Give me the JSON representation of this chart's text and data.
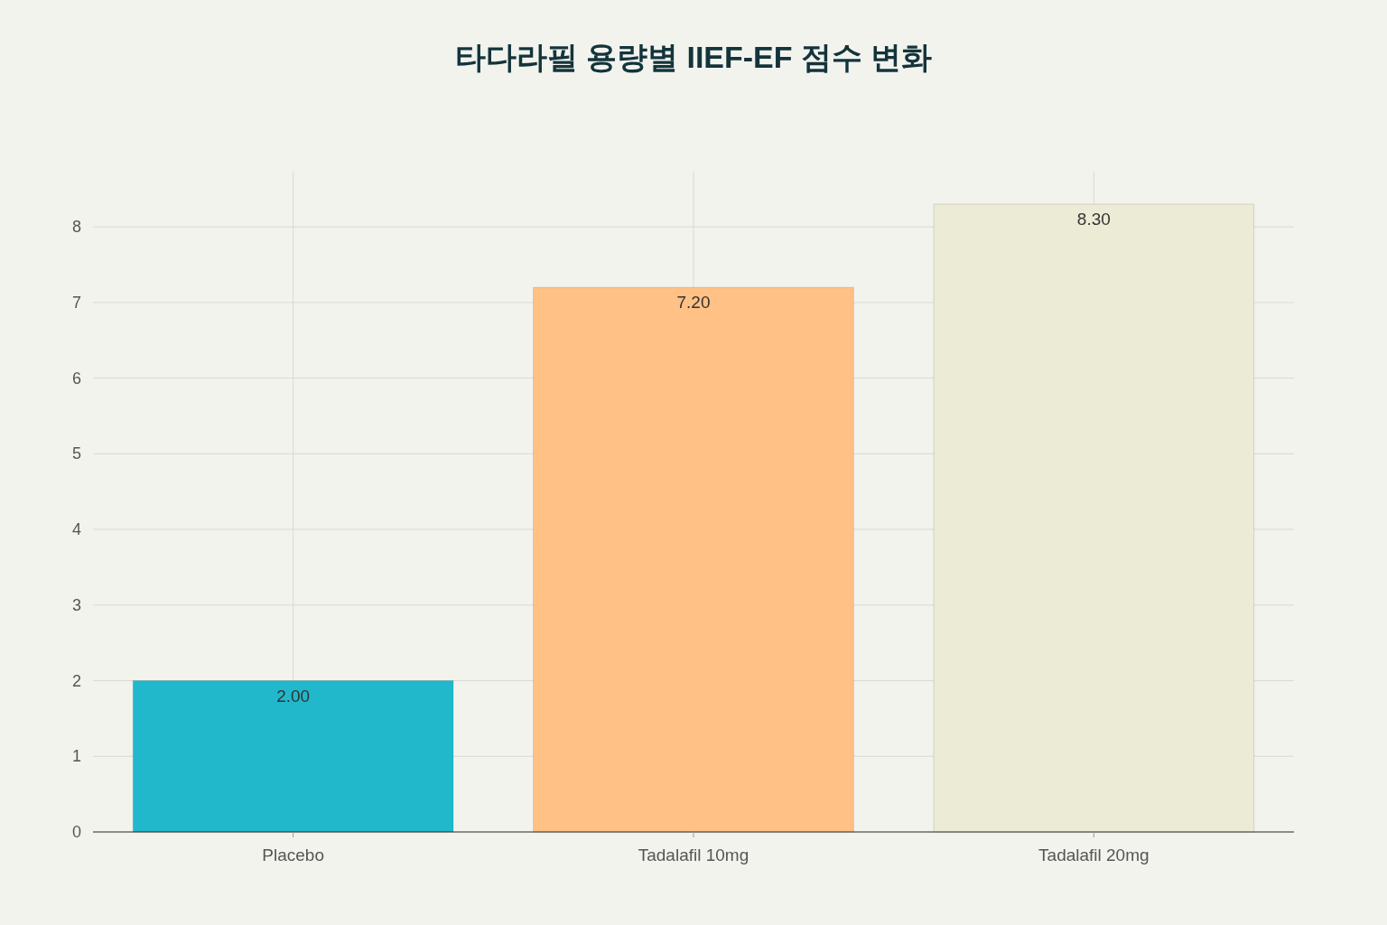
{
  "chart_data": {
    "type": "bar",
    "title": "타다라필 용량별 IIEF-EF 점수 변화",
    "categories": [
      "Placebo",
      "Tadalafil 10mg",
      "Tadalafil 20mg"
    ],
    "values": [
      2.0,
      7.2,
      8.3
    ],
    "colors": [
      "#21b8cc",
      "#ffc185",
      "#ecebd5"
    ],
    "value_labels": [
      "2.00",
      "7.20",
      "8.30"
    ],
    "ylim": [
      0,
      8.73
    ],
    "yticks": [
      0,
      1,
      2,
      3,
      4,
      5,
      6,
      7,
      8
    ],
    "grid": true
  }
}
